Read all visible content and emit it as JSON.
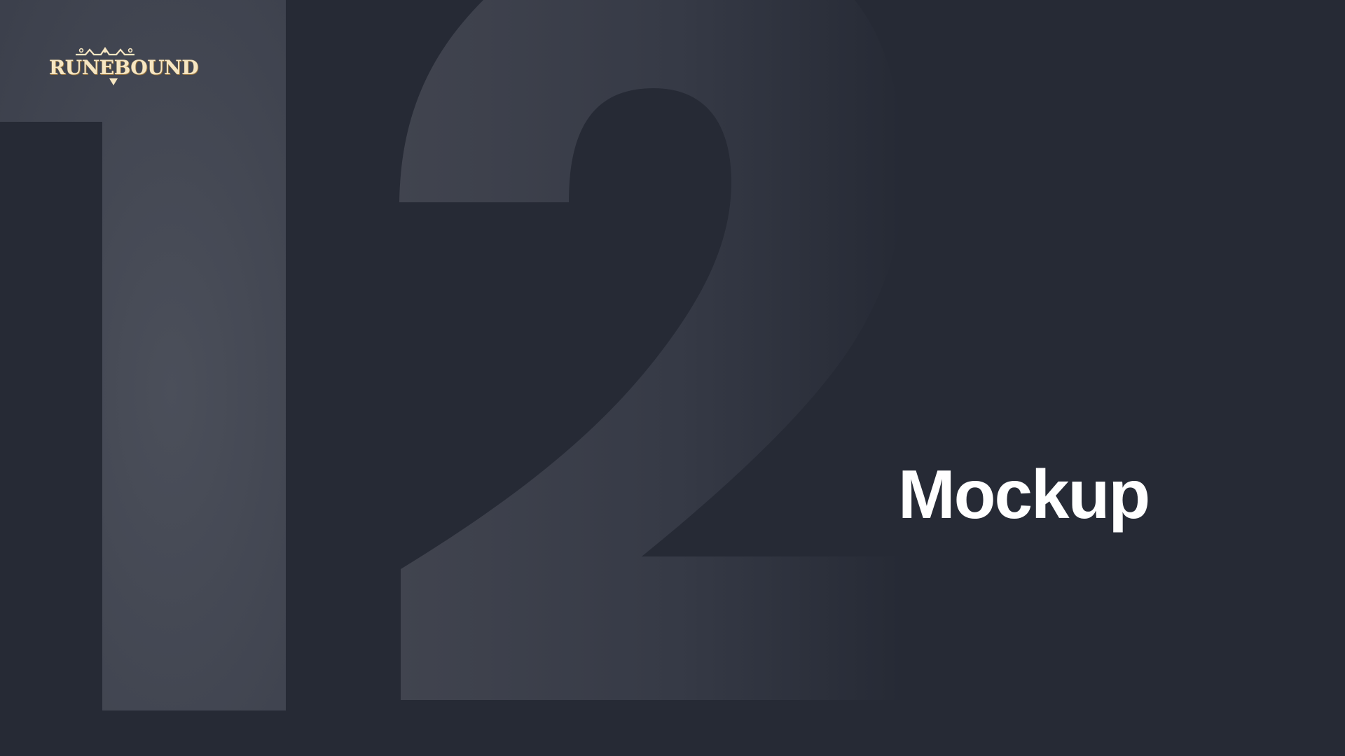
{
  "slide": {
    "section_number": "12",
    "title": "Mockup"
  },
  "logo": {
    "text": "RUNEBOUND"
  },
  "colors": {
    "background": "#262a35",
    "numeral_highlight": "#4b4f5a",
    "numeral_shadow": "#2b2f3a",
    "title": "#ffffff",
    "logo": "#f6e6c2"
  },
  "icons": {
    "logo_ornament": "crown-ornament-icon"
  }
}
